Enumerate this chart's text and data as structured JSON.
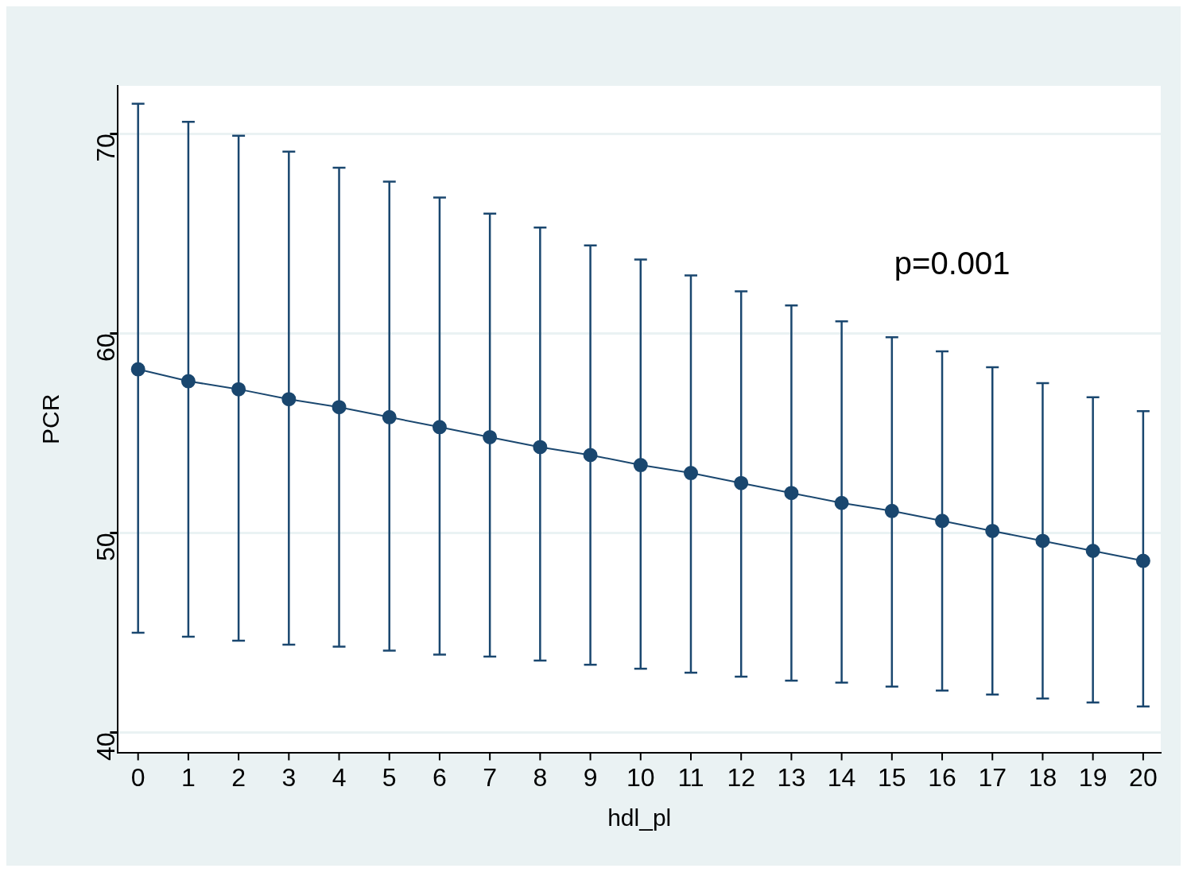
{
  "chart_data": {
    "type": "line",
    "xlabel": "hdl_pl",
    "ylabel": "PCR",
    "annotations": [
      "p=0.001"
    ],
    "x": [
      0,
      1,
      2,
      3,
      4,
      5,
      6,
      7,
      8,
      9,
      10,
      11,
      12,
      13,
      14,
      15,
      16,
      17,
      18,
      19,
      20
    ],
    "series": [
      {
        "color": "#1a476f",
        "values": [
          58.2,
          57.6,
          57.2,
          56.7,
          56.3,
          55.8,
          55.3,
          54.8,
          54.3,
          53.9,
          53.4,
          53.0,
          52.5,
          52.0,
          51.5,
          51.1,
          50.6,
          50.1,
          49.6,
          49.1,
          48.6
        ],
        "errors": [
          [
            45.0,
            71.5
          ],
          [
            44.8,
            70.6
          ],
          [
            44.6,
            69.9
          ],
          [
            44.4,
            69.1
          ],
          [
            44.3,
            68.3
          ],
          [
            44.1,
            67.6
          ],
          [
            43.9,
            66.8
          ],
          [
            43.8,
            66.0
          ],
          [
            43.6,
            65.3
          ],
          [
            43.4,
            64.4
          ],
          [
            43.2,
            63.7
          ],
          [
            43.0,
            62.9
          ],
          [
            42.8,
            62.1
          ],
          [
            42.6,
            61.4
          ],
          [
            42.5,
            60.6
          ],
          [
            42.3,
            59.8
          ],
          [
            42.1,
            59.1
          ],
          [
            41.9,
            58.3
          ],
          [
            41.7,
            57.5
          ],
          [
            41.5,
            56.8
          ],
          [
            41.3,
            56.1
          ]
        ]
      }
    ],
    "xlim": [
      -0.4,
      20.35
    ],
    "xticks": [
      0,
      1,
      2,
      3,
      4,
      5,
      6,
      7,
      8,
      9,
      10,
      11,
      12,
      13,
      14,
      15,
      16,
      17,
      18,
      19,
      20
    ],
    "ylim": [
      39,
      72.4
    ],
    "yticks": [
      40,
      50,
      60,
      70
    ],
    "grid": "y",
    "legend": false,
    "marker": "circle",
    "line_style": "solid"
  }
}
